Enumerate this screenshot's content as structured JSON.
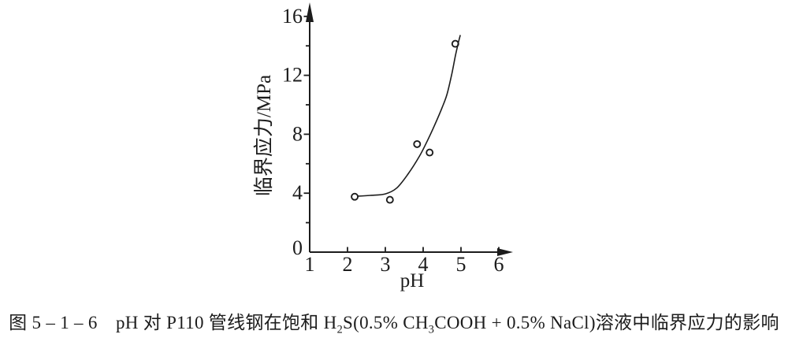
{
  "figure": {
    "caption": {
      "part1": "图 5 – 1 – 6　pH 对 P110 管线钢在饱和 H",
      "sub1": "2",
      "part2": "S(0.5% CH",
      "sub2": "3",
      "part3": "COOH + 0.5% NaCl)溶液中临界应力的影响"
    }
  },
  "chart_data": {
    "type": "scatter",
    "title": "",
    "xlabel": "pH",
    "ylabel": "临界应力/MPa",
    "xlim": [
      1,
      6.35
    ],
    "ylim": [
      0,
      17
    ],
    "x_ticks": [
      1,
      2,
      3,
      4,
      5,
      6
    ],
    "y_ticks_major": [
      0,
      4,
      8,
      12,
      16
    ],
    "y_ticks_minor": [
      2,
      6,
      10,
      14
    ],
    "grid": false,
    "legend": "none",
    "axis_arrows": true,
    "ink_color": "#1c1c1c",
    "background_color": "#ffffff",
    "series": [
      {
        "name": "measured-critical-stress",
        "type": "scatter",
        "marker": "open-circle",
        "points": [
          [
            2.19,
            3.76
          ],
          [
            3.12,
            3.55
          ],
          [
            3.84,
            7.33
          ],
          [
            4.17,
            6.76
          ],
          [
            4.85,
            14.14
          ]
        ]
      },
      {
        "name": "trend-curve",
        "type": "line",
        "points": [
          [
            2.28,
            3.8
          ],
          [
            2.6,
            3.85
          ],
          [
            3.0,
            3.95
          ],
          [
            3.3,
            4.35
          ],
          [
            3.6,
            5.3
          ],
          [
            3.9,
            6.5
          ],
          [
            4.1,
            7.5
          ],
          [
            4.3,
            8.6
          ],
          [
            4.5,
            9.8
          ],
          [
            4.63,
            10.7
          ],
          [
            4.75,
            12.0
          ],
          [
            4.85,
            13.3
          ],
          [
            4.93,
            14.2
          ],
          [
            4.98,
            14.7
          ]
        ]
      }
    ]
  }
}
